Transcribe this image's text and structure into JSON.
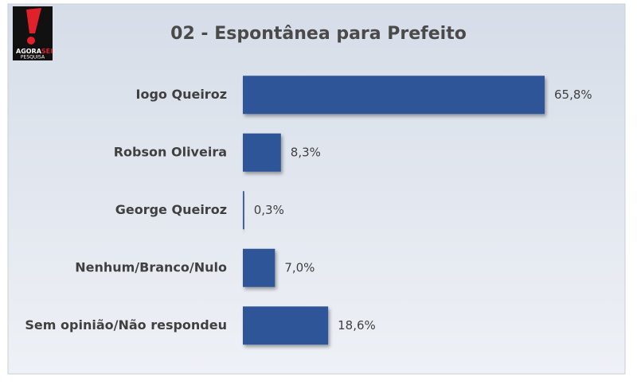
{
  "logo": {
    "word1": "AGORA",
    "word2": "SEI",
    "word3": "PESQUISA"
  },
  "chart_data": {
    "type": "barh",
    "title": "02 - Espontânea para Prefeito",
    "categories": [
      "Iogo Queiroz",
      "Robson Oliveira",
      "George Queiroz",
      "Nenhum/Branco/Nulo",
      "Sem opinião/Não respondeu"
    ],
    "values": [
      65.8,
      8.3,
      0.3,
      7.0,
      18.6
    ],
    "value_labels": [
      "65,8%",
      "8,3%",
      "0,3%",
      "7,0%",
      "18,6%"
    ],
    "color": "#2f5597"
  }
}
